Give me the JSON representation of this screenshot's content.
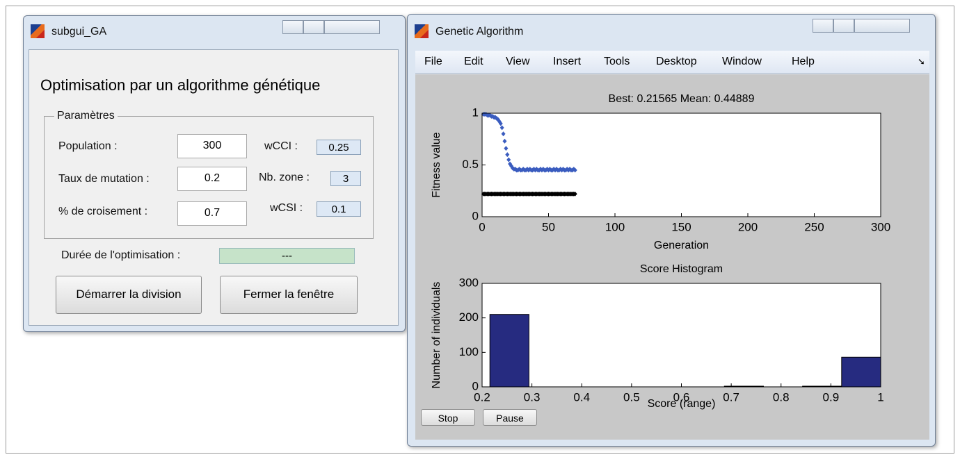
{
  "left_window": {
    "title": "subgui_GA",
    "heading": "Optimisation par un algorithme génétique",
    "group_title": "Paramètres",
    "fields": [
      {
        "label": "Population :",
        "value": "300"
      },
      {
        "label": "Taux de mutation :",
        "value": "0.2"
      },
      {
        "label": "% de croisement :",
        "value": "0.7"
      }
    ],
    "weights": [
      {
        "label": "wCCI :",
        "value": "0.25"
      },
      {
        "label": "Nb. zone :",
        "value": "3"
      },
      {
        "label": "wCSI :",
        "value": "0.1"
      }
    ],
    "duration_label": "Durée de l'optimisation :",
    "duration_value": "---",
    "buttons": [
      "Démarrer la division",
      "Fermer la fenêtre"
    ]
  },
  "right_window": {
    "title": "Genetic Algorithm",
    "menu": [
      "File",
      "Edit",
      "View",
      "Insert",
      "Tools",
      "Desktop",
      "Window",
      "Help"
    ],
    "buttons": [
      "Stop",
      "Pause"
    ]
  },
  "chart_data": [
    {
      "type": "scatter",
      "title": "Best: 0.21565 Mean: 0.44889",
      "xlabel": "Generation",
      "ylabel": "Fitness value",
      "x": [
        1,
        2,
        3,
        4,
        5,
        6,
        7,
        8,
        9,
        10,
        11,
        12,
        13,
        14,
        15,
        16,
        17,
        18,
        19,
        20,
        21,
        22,
        23,
        24,
        25,
        26,
        27,
        28,
        29,
        30,
        31,
        32,
        33,
        34,
        35,
        36,
        37,
        38,
        39,
        40,
        41,
        42,
        43,
        44,
        45,
        46,
        47,
        48,
        49,
        50,
        51,
        52,
        53,
        54,
        55,
        56,
        57,
        58,
        59,
        60,
        61,
        62,
        63,
        64,
        65,
        66,
        67,
        68,
        69,
        70
      ],
      "series": [
        {
          "color": "#000000",
          "values": [
            0.22,
            0.22,
            0.22,
            0.22,
            0.22,
            0.22,
            0.22,
            0.22,
            0.22,
            0.22,
            0.22,
            0.22,
            0.22,
            0.22,
            0.22,
            0.22,
            0.22,
            0.22,
            0.22,
            0.22,
            0.22,
            0.22,
            0.22,
            0.22,
            0.22,
            0.22,
            0.22,
            0.22,
            0.22,
            0.22,
            0.22,
            0.22,
            0.22,
            0.22,
            0.22,
            0.22,
            0.22,
            0.22,
            0.22,
            0.22,
            0.22,
            0.22,
            0.22,
            0.22,
            0.22,
            0.22,
            0.22,
            0.22,
            0.22,
            0.22,
            0.22,
            0.22,
            0.22,
            0.22,
            0.22,
            0.22,
            0.22,
            0.22,
            0.22,
            0.22,
            0.22,
            0.22,
            0.22,
            0.22,
            0.22,
            0.22,
            0.22,
            0.22,
            0.22,
            0.22
          ]
        },
        {
          "color": "#3a5cbf",
          "values": [
            0.99,
            0.99,
            0.99,
            0.98,
            0.98,
            0.98,
            0.97,
            0.97,
            0.96,
            0.96,
            0.95,
            0.94,
            0.92,
            0.9,
            0.86,
            0.8,
            0.73,
            0.66,
            0.6,
            0.55,
            0.51,
            0.49,
            0.47,
            0.46,
            0.46,
            0.45,
            0.45,
            0.46,
            0.45,
            0.45,
            0.46,
            0.45,
            0.45,
            0.46,
            0.45,
            0.46,
            0.45,
            0.45,
            0.46,
            0.45,
            0.46,
            0.45,
            0.45,
            0.46,
            0.45,
            0.46,
            0.45,
            0.45,
            0.46,
            0.45,
            0.46,
            0.45,
            0.45,
            0.46,
            0.45,
            0.46,
            0.45,
            0.45,
            0.46,
            0.45,
            0.46,
            0.45,
            0.45,
            0.46,
            0.45,
            0.46,
            0.45,
            0.45,
            0.46,
            0.45
          ]
        }
      ],
      "xlim": [
        0,
        300
      ],
      "xticks": [
        0,
        50,
        100,
        150,
        200,
        250,
        300
      ],
      "ylim": [
        0,
        1
      ],
      "yticks": [
        0,
        0.5,
        1
      ]
    },
    {
      "type": "histogram",
      "title": "Score Histogram",
      "xlabel": "Score (range)",
      "ylabel": "Number of individuals",
      "color": "#262b80",
      "bins": [
        0.21565,
        0.29409,
        0.37252,
        0.45096,
        0.52939,
        0.60783,
        0.68626,
        0.7647,
        0.84313,
        0.92157,
        1
      ],
      "values": [
        210,
        0,
        0,
        0,
        0,
        0,
        2,
        0,
        2,
        86
      ],
      "xlim": [
        0.2,
        1
      ],
      "xticks": [
        0.2,
        0.3,
        0.4,
        0.5,
        0.6,
        0.7,
        0.8,
        0.9,
        1
      ],
      "ylim": [
        0,
        300
      ],
      "yticks": [
        0,
        100,
        200,
        300
      ]
    }
  ]
}
